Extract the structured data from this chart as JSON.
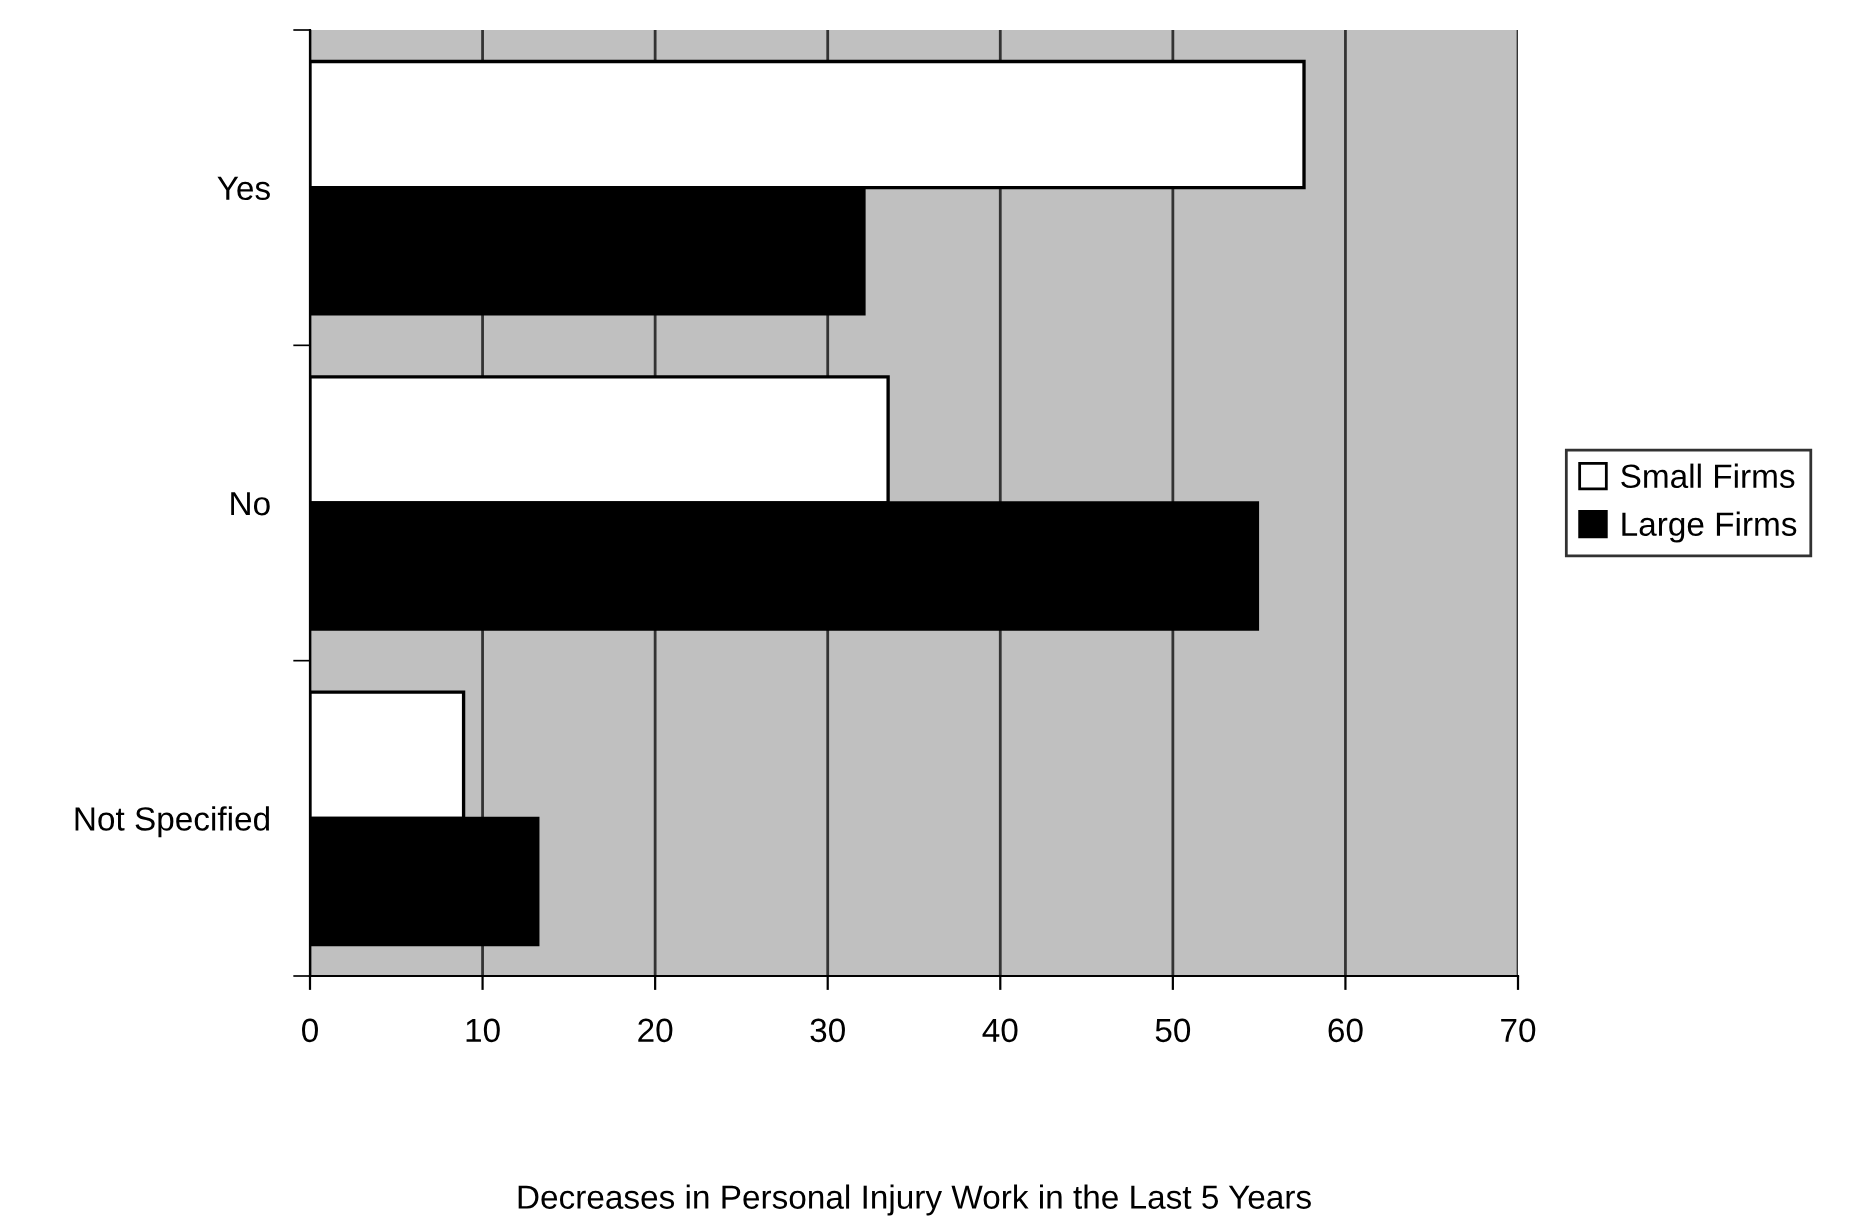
{
  "chart_data": {
    "type": "bar",
    "orientation": "horizontal",
    "xlabel": "Decreases in Personal Injury Work in the Last 5 Years",
    "categories": [
      "Yes",
      "No",
      "Not Specified"
    ],
    "series": [
      {
        "name": "Small Firms",
        "color": "#ffffff",
        "values": [
          57.6,
          33.5,
          8.9
        ]
      },
      {
        "name": "Large Firms",
        "color": "#000000",
        "values": [
          32.1,
          54.9,
          13.2
        ]
      }
    ],
    "xlim": [
      0,
      70
    ],
    "xticks": [
      0,
      10,
      20,
      30,
      40,
      50,
      60,
      70
    ],
    "grid": "x",
    "legend": "right"
  }
}
